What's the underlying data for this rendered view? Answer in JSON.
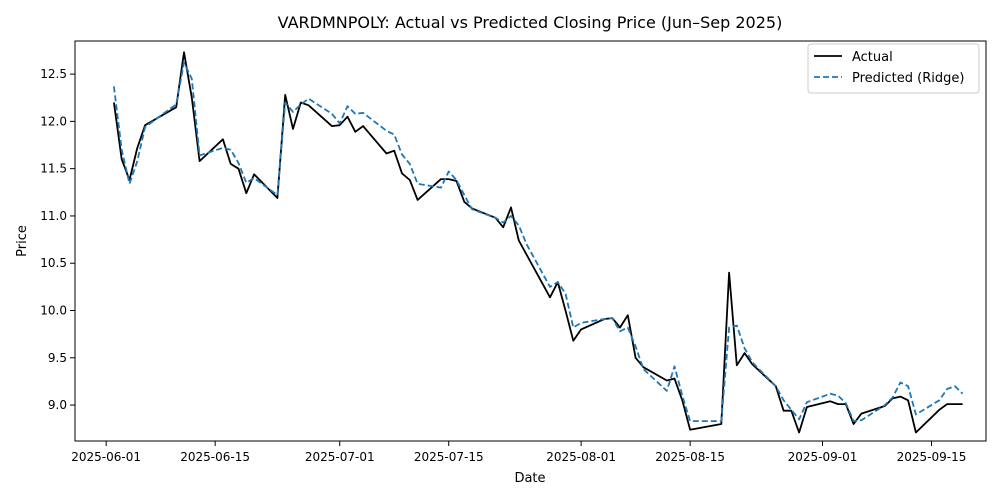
{
  "chart_data": {
    "type": "line",
    "title": "VARDMNPOLY: Actual vs Predicted Closing Price (Jun–Sep 2025)",
    "xlabel": "Date",
    "ylabel": "Price",
    "x_ticks": [
      "2025-06-01",
      "2025-06-15",
      "2025-07-01",
      "2025-07-15",
      "2025-08-01",
      "2025-08-15",
      "2025-09-01",
      "2025-09-15"
    ],
    "y_ticks": [
      9.0,
      9.5,
      10.0,
      10.5,
      11.0,
      11.5,
      12.0,
      12.5
    ],
    "xlim": [
      "2025-05-28",
      "2025-09-22"
    ],
    "ylim": [
      8.62,
      12.85
    ],
    "grid": false,
    "legend_position": "top-right",
    "series": [
      {
        "name": "Actual",
        "color": "#000000",
        "style": "solid",
        "points": [
          [
            "2025-06-02",
            12.2
          ],
          [
            "2025-06-03",
            11.6
          ],
          [
            "2025-06-04",
            11.38
          ],
          [
            "2025-06-05",
            11.72
          ],
          [
            "2025-06-06",
            11.96
          ],
          [
            "2025-06-10",
            12.15
          ],
          [
            "2025-06-11",
            12.73
          ],
          [
            "2025-06-12",
            12.25
          ],
          [
            "2025-06-13",
            11.58
          ],
          [
            "2025-06-16",
            11.81
          ],
          [
            "2025-06-17",
            11.55
          ],
          [
            "2025-06-18",
            11.5
          ],
          [
            "2025-06-19",
            11.24
          ],
          [
            "2025-06-20",
            11.44
          ],
          [
            "2025-06-23",
            11.19
          ],
          [
            "2025-06-24",
            12.28
          ],
          [
            "2025-06-25",
            11.92
          ],
          [
            "2025-06-26",
            12.2
          ],
          [
            "2025-06-27",
            12.17
          ],
          [
            "2025-06-30",
            11.95
          ],
          [
            "2025-07-01",
            11.96
          ],
          [
            "2025-07-02",
            12.05
          ],
          [
            "2025-07-03",
            11.89
          ],
          [
            "2025-07-04",
            11.95
          ],
          [
            "2025-07-07",
            11.66
          ],
          [
            "2025-07-08",
            11.69
          ],
          [
            "2025-07-09",
            11.45
          ],
          [
            "2025-07-10",
            11.38
          ],
          [
            "2025-07-11",
            11.17
          ],
          [
            "2025-07-14",
            11.39
          ],
          [
            "2025-07-15",
            11.39
          ],
          [
            "2025-07-16",
            11.37
          ],
          [
            "2025-07-17",
            11.15
          ],
          [
            "2025-07-18",
            11.08
          ],
          [
            "2025-07-21",
            10.98
          ],
          [
            "2025-07-22",
            10.88
          ],
          [
            "2025-07-23",
            11.09
          ],
          [
            "2025-07-24",
            10.74
          ],
          [
            "2025-07-28",
            10.14
          ],
          [
            "2025-07-29",
            10.3
          ],
          [
            "2025-07-30",
            10.0
          ],
          [
            "2025-07-31",
            9.68
          ],
          [
            "2025-08-01",
            9.8
          ],
          [
            "2025-08-04",
            9.91
          ],
          [
            "2025-08-05",
            9.92
          ],
          [
            "2025-08-06",
            9.82
          ],
          [
            "2025-08-07",
            9.95
          ],
          [
            "2025-08-08",
            9.5
          ],
          [
            "2025-08-09",
            9.4
          ],
          [
            "2025-08-12",
            9.26
          ],
          [
            "2025-08-13",
            9.28
          ],
          [
            "2025-08-14",
            9.05
          ],
          [
            "2025-08-15",
            8.74
          ],
          [
            "2025-08-19",
            8.8
          ],
          [
            "2025-08-20",
            10.4
          ],
          [
            "2025-08-21",
            9.42
          ],
          [
            "2025-08-22",
            9.55
          ],
          [
            "2025-08-23",
            9.43
          ],
          [
            "2025-08-26",
            9.2
          ],
          [
            "2025-08-27",
            8.94
          ],
          [
            "2025-08-28",
            8.94
          ],
          [
            "2025-08-29",
            8.71
          ],
          [
            "2025-08-30",
            8.98
          ],
          [
            "2025-09-02",
            9.04
          ],
          [
            "2025-09-03",
            9.01
          ],
          [
            "2025-09-04",
            9.01
          ],
          [
            "2025-09-05",
            8.8
          ],
          [
            "2025-09-06",
            8.91
          ],
          [
            "2025-09-09",
            8.99
          ],
          [
            "2025-09-10",
            9.07
          ],
          [
            "2025-09-11",
            9.09
          ],
          [
            "2025-09-12",
            9.05
          ],
          [
            "2025-09-13",
            8.71
          ],
          [
            "2025-09-16",
            8.95
          ],
          [
            "2025-09-17",
            9.01
          ],
          [
            "2025-09-19",
            9.01
          ]
        ]
      },
      {
        "name": "Predicted (Ridge)",
        "color": "#1f77b4",
        "style": "dashed",
        "points": [
          [
            "2025-06-02",
            12.37
          ],
          [
            "2025-06-03",
            11.7
          ],
          [
            "2025-06-04",
            11.34
          ],
          [
            "2025-06-05",
            11.58
          ],
          [
            "2025-06-06",
            11.94
          ],
          [
            "2025-06-09",
            12.12
          ],
          [
            "2025-06-10",
            12.18
          ],
          [
            "2025-06-11",
            12.62
          ],
          [
            "2025-06-12",
            12.45
          ],
          [
            "2025-06-13",
            11.64
          ],
          [
            "2025-06-16",
            11.72
          ],
          [
            "2025-06-17",
            11.7
          ],
          [
            "2025-06-18",
            11.56
          ],
          [
            "2025-06-19",
            11.35
          ],
          [
            "2025-06-20",
            11.4
          ],
          [
            "2025-06-23",
            11.22
          ],
          [
            "2025-06-24",
            12.2
          ],
          [
            "2025-06-25",
            12.1
          ],
          [
            "2025-06-26",
            12.18
          ],
          [
            "2025-06-27",
            12.24
          ],
          [
            "2025-06-30",
            12.08
          ],
          [
            "2025-07-01",
            11.98
          ],
          [
            "2025-07-02",
            12.16
          ],
          [
            "2025-07-03",
            12.08
          ],
          [
            "2025-07-04",
            12.09
          ],
          [
            "2025-07-07",
            11.9
          ],
          [
            "2025-07-08",
            11.86
          ],
          [
            "2025-07-09",
            11.65
          ],
          [
            "2025-07-10",
            11.55
          ],
          [
            "2025-07-11",
            11.34
          ],
          [
            "2025-07-14",
            11.3
          ],
          [
            "2025-07-15",
            11.47
          ],
          [
            "2025-07-16",
            11.38
          ],
          [
            "2025-07-17",
            11.22
          ],
          [
            "2025-07-18",
            11.07
          ],
          [
            "2025-07-21",
            10.98
          ],
          [
            "2025-07-22",
            10.93
          ],
          [
            "2025-07-23",
            11.0
          ],
          [
            "2025-07-24",
            10.9
          ],
          [
            "2025-07-25",
            10.7
          ],
          [
            "2025-07-28",
            10.25
          ],
          [
            "2025-07-29",
            10.3
          ],
          [
            "2025-07-30",
            10.18
          ],
          [
            "2025-07-31",
            9.82
          ],
          [
            "2025-08-01",
            9.87
          ],
          [
            "2025-08-04",
            9.91
          ],
          [
            "2025-08-05",
            9.92
          ],
          [
            "2025-08-06",
            9.78
          ],
          [
            "2025-08-07",
            9.82
          ],
          [
            "2025-08-08",
            9.62
          ],
          [
            "2025-08-09",
            9.38
          ],
          [
            "2025-08-12",
            9.15
          ],
          [
            "2025-08-13",
            9.41
          ],
          [
            "2025-08-14",
            9.1
          ],
          [
            "2025-08-15",
            8.83
          ],
          [
            "2025-08-19",
            8.83
          ],
          [
            "2025-08-20",
            9.82
          ],
          [
            "2025-08-21",
            9.84
          ],
          [
            "2025-08-22",
            9.6
          ],
          [
            "2025-08-23",
            9.45
          ],
          [
            "2025-08-26",
            9.2
          ],
          [
            "2025-08-27",
            9.05
          ],
          [
            "2025-08-28",
            8.95
          ],
          [
            "2025-08-29",
            8.85
          ],
          [
            "2025-08-30",
            9.03
          ],
          [
            "2025-09-02",
            9.12
          ],
          [
            "2025-09-03",
            9.1
          ],
          [
            "2025-09-04",
            9.02
          ],
          [
            "2025-09-05",
            8.83
          ],
          [
            "2025-09-06",
            8.84
          ],
          [
            "2025-09-09",
            9.0
          ],
          [
            "2025-09-10",
            9.08
          ],
          [
            "2025-09-11",
            9.24
          ],
          [
            "2025-09-12",
            9.2
          ],
          [
            "2025-09-13",
            8.9
          ],
          [
            "2025-09-16",
            9.05
          ],
          [
            "2025-09-17",
            9.17
          ],
          [
            "2025-09-18",
            9.2
          ],
          [
            "2025-09-19",
            9.12
          ]
        ]
      }
    ]
  }
}
